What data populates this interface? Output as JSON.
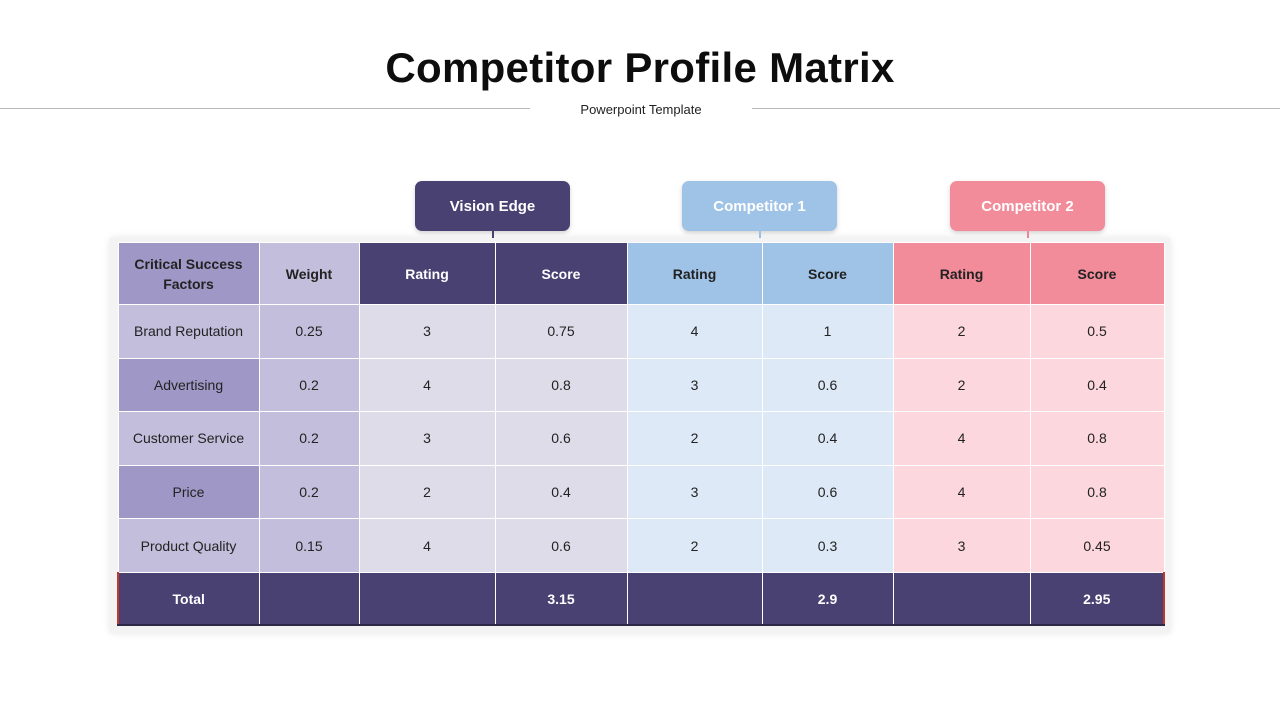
{
  "header": {
    "title": "Competitor Profile Matrix",
    "subtitle": "Powerpoint Template"
  },
  "companies": [
    {
      "label": "Vision Edge",
      "color": "#4a4173"
    },
    {
      "label": "Competitor 1",
      "color": "#9ec3e6"
    },
    {
      "label": "Competitor 2",
      "color": "#f28b9a"
    }
  ],
  "table": {
    "columns": [
      "Critical Success Factors",
      "Weight",
      "Rating",
      "Score",
      "Rating",
      "Score",
      "Rating",
      "Score"
    ],
    "rows": [
      {
        "factor": "Brand Reputation",
        "weight": "0.25",
        "values": [
          "3",
          "0.75",
          "4",
          "1",
          "2",
          "0.5"
        ]
      },
      {
        "factor": "Advertising",
        "weight": "0.2",
        "values": [
          "4",
          "0.8",
          "3",
          "0.6",
          "2",
          "0.4"
        ]
      },
      {
        "factor": "Customer Service",
        "weight": "0.2",
        "values": [
          "3",
          "0.6",
          "2",
          "0.4",
          "4",
          "0.8"
        ]
      },
      {
        "factor": "Price",
        "weight": "0.2",
        "values": [
          "2",
          "0.4",
          "3",
          "0.6",
          "4",
          "0.8"
        ]
      },
      {
        "factor": "Product Quality",
        "weight": "0.15",
        "values": [
          "4",
          "0.6",
          "2",
          "0.3",
          "3",
          "0.45"
        ]
      }
    ],
    "total": {
      "label": "Total",
      "vision_score": "3.15",
      "c1_score": "2.9",
      "c2_score": "2.95"
    }
  }
}
